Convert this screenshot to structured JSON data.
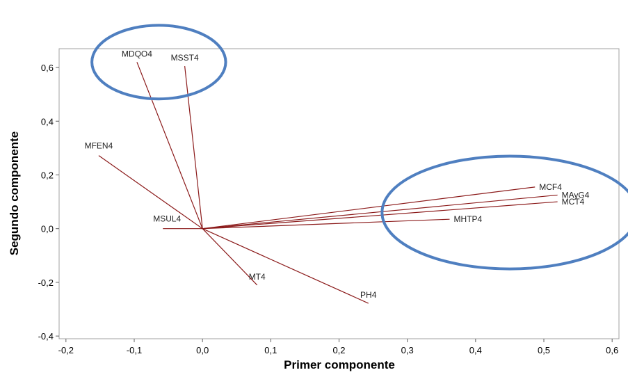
{
  "chart_data": {
    "type": "scatter",
    "subtype": "loading-plot",
    "xlabel": "Primer componente",
    "ylabel": "Segundo componente",
    "xlim": [
      -0.21,
      0.61
    ],
    "ylim": [
      -0.41,
      0.67
    ],
    "xticks": [
      -0.2,
      -0.1,
      0.0,
      0.1,
      0.2,
      0.3,
      0.4,
      0.5,
      0.6
    ],
    "xtick_labels": [
      "-0,2",
      "-0,1",
      "0,0",
      "0,1",
      "0,2",
      "0,3",
      "0,4",
      "0,5",
      "0,6"
    ],
    "yticks": [
      -0.4,
      -0.2,
      0.0,
      0.2,
      0.4,
      0.6
    ],
    "ytick_labels": [
      "-0,4",
      "-0,2",
      "0,0",
      "0,2",
      "0,4",
      "0,6"
    ],
    "grid": false,
    "line_color": "#8b1a1a",
    "highlight_color": "#4f7fc0",
    "points": [
      {
        "label": "MDQO4",
        "x": -0.096,
        "y": 0.62
      },
      {
        "label": "MSST4",
        "x": -0.026,
        "y": 0.605
      },
      {
        "label": "MFEN4",
        "x": -0.152,
        "y": 0.272
      },
      {
        "label": "MSUL4",
        "x": -0.058,
        "y": 0.0
      },
      {
        "label": "MCF4",
        "x": 0.487,
        "y": 0.155
      },
      {
        "label": "MAyG4",
        "x": 0.52,
        "y": 0.125
      },
      {
        "label": "MCT4",
        "x": 0.52,
        "y": 0.1
      },
      {
        "label": "MHTP4",
        "x": 0.362,
        "y": 0.035
      },
      {
        "label": "MT4",
        "x": 0.08,
        "y": -0.21
      },
      {
        "label": "PH4",
        "x": 0.243,
        "y": -0.278
      }
    ],
    "highlights": [
      {
        "cx": -0.064,
        "cy": 0.62,
        "rx": 0.098,
        "ry": 0.137
      },
      {
        "cx": 0.45,
        "cy": 0.06,
        "rx": 0.187,
        "ry": 0.21
      }
    ]
  }
}
